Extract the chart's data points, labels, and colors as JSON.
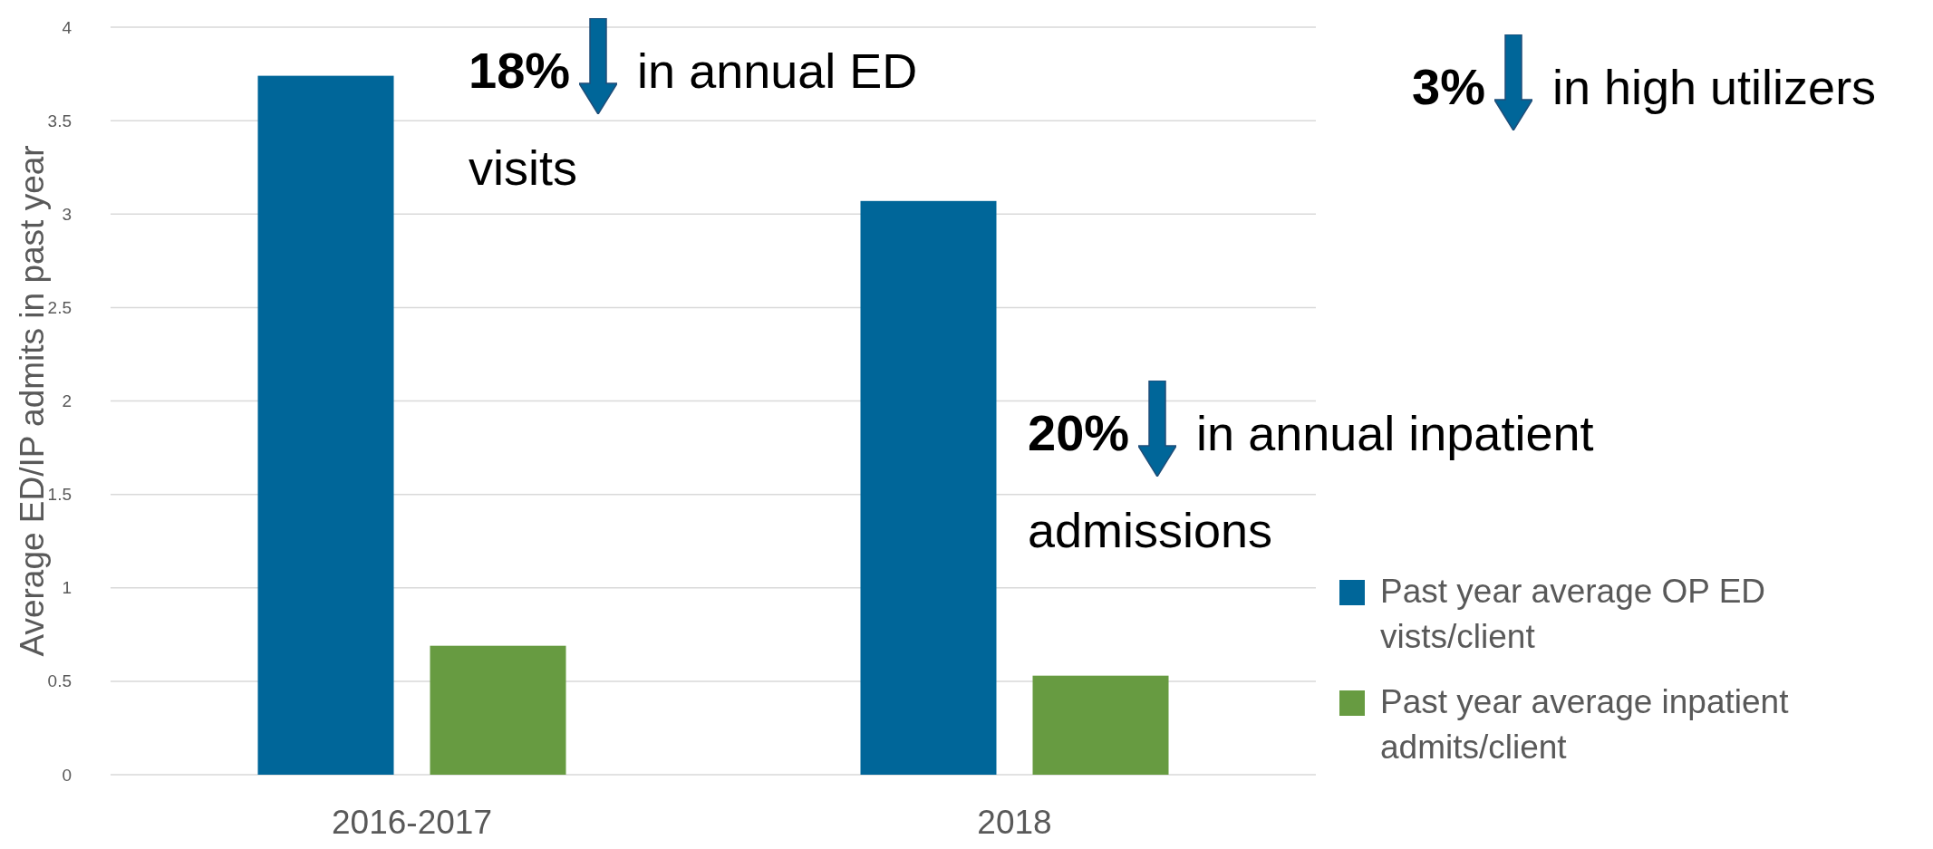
{
  "chart_data": {
    "type": "bar",
    "ylabel": "Average ED/IP admits in past year",
    "categories": [
      "2016-2017",
      "2018"
    ],
    "series": [
      {
        "name": "Past year average OP ED vists/client",
        "color": "#006699",
        "values": [
          3.74,
          3.07
        ]
      },
      {
        "name": "Past year average inpatient admits/client",
        "color": "#679b41",
        "values": [
          0.69,
          0.53
        ]
      }
    ],
    "ylim": [
      0,
      4
    ],
    "yticks": [
      0,
      0.5,
      1,
      1.5,
      2,
      2.5,
      3,
      3.5,
      4
    ],
    "grid": "y",
    "legend": "bottom right",
    "annotations": [
      "18%",
      "in annual ED visits",
      "3%",
      "in high utilizers",
      "20%",
      "in annual inpatient admissions"
    ]
  }
}
